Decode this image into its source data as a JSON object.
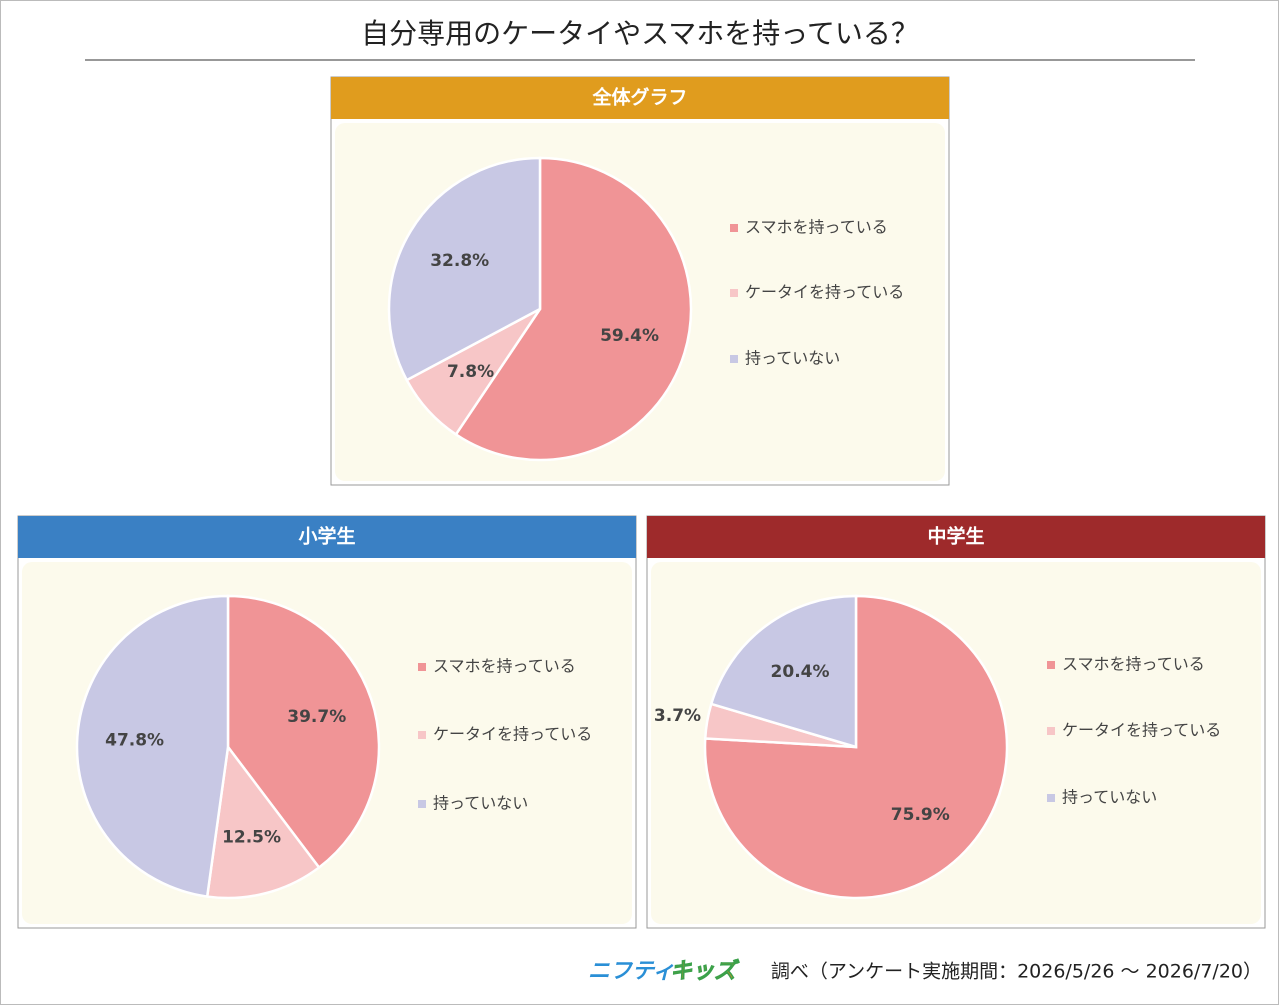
{
  "title": "自分専用のケータイやスマホを持っている？",
  "chart_data": [
    {
      "type": "pie",
      "title": "全体グラフ",
      "header_color": "#e09c1e",
      "categories": [
        "スマホを持っている",
        "ケータイを持っている",
        "持っていない"
      ],
      "values": [
        59.4,
        7.8,
        32.8
      ],
      "value_labels": [
        "59.4%",
        "7.8%",
        "32.8%"
      ],
      "colors": [
        "#f09496",
        "#f7c6c7",
        "#c8c8e4"
      ]
    },
    {
      "type": "pie",
      "title": "小学生",
      "header_color": "#3a80c4",
      "categories": [
        "スマホを持っている",
        "ケータイを持っている",
        "持っていない"
      ],
      "values": [
        39.7,
        12.5,
        47.8
      ],
      "value_labels": [
        "39.7%",
        "12.5%",
        "47.8%"
      ],
      "colors": [
        "#f09496",
        "#f7c6c7",
        "#c8c8e4"
      ]
    },
    {
      "type": "pie",
      "title": "中学生",
      "header_color": "#9e2a2b",
      "categories": [
        "スマホを持っている",
        "ケータイを持っている",
        "持っていない"
      ],
      "values": [
        75.9,
        3.7,
        20.4
      ],
      "value_labels": [
        "75.9%",
        "3.7%",
        "20.4%"
      ],
      "colors": [
        "#f09496",
        "#f7c6c7",
        "#c8c8e4"
      ]
    }
  ],
  "footer": {
    "brand_a": "ニフティ",
    "brand_b": "キッズ",
    "note": "調べ（アンケート実施期間：2026/5/26 ～ 2026/7/20）"
  }
}
